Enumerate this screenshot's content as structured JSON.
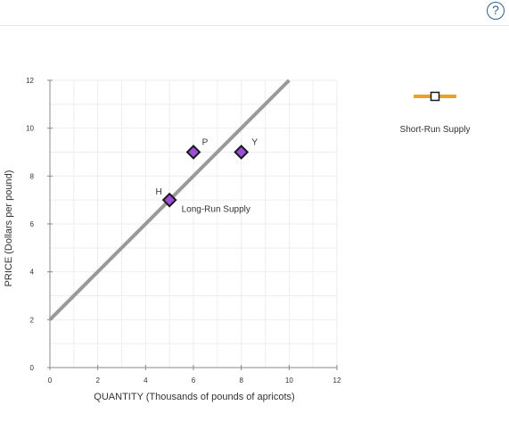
{
  "header": {
    "help_label": "?"
  },
  "chart_data": {
    "type": "line",
    "title": "",
    "xlabel": "QUANTITY (Thousands of pounds of apricots)",
    "ylabel": "PRICE (Dollars per pound)",
    "xlim": [
      0,
      12
    ],
    "ylim": [
      0,
      12
    ],
    "x_ticks": [
      "0",
      "2",
      "4",
      "6",
      "8",
      "10",
      "12"
    ],
    "y_ticks": [
      "0",
      "2",
      "4",
      "6",
      "8",
      "10",
      "12"
    ],
    "grid": true,
    "series": [
      {
        "name": "Long-Run Supply",
        "x": [
          0,
          10
        ],
        "y": [
          2,
          12
        ],
        "color": "#999999"
      }
    ],
    "points": [
      {
        "label": "H",
        "x": 5,
        "y": 7
      },
      {
        "label": "P",
        "x": 6,
        "y": 9
      },
      {
        "label": "Y",
        "x": 8,
        "y": 9
      }
    ],
    "point_color": "#9c4fd6",
    "legend": {
      "label": "Short-Run Supply",
      "color": "#f0a020",
      "placement": "top-right"
    }
  }
}
